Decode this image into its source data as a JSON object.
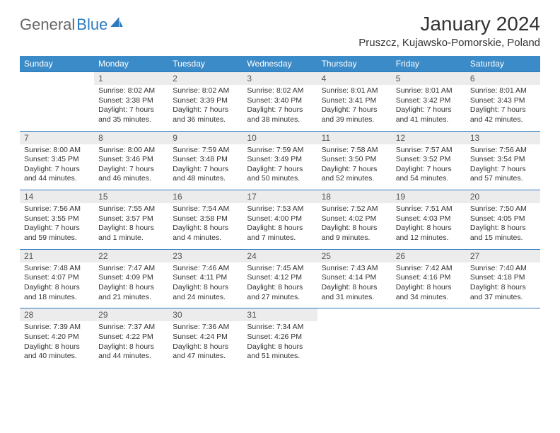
{
  "brand": {
    "part1": "General",
    "part2": "Blue"
  },
  "title": "January 2024",
  "location": "Pruszcz, Kujawsko-Pomorskie, Poland",
  "colors": {
    "header_bg": "#3b8bc8",
    "border": "#2b7bbf",
    "daynum_bg": "#ececec",
    "text": "#333333",
    "logo_gray": "#666666",
    "logo_blue": "#2b7bbf"
  },
  "weekdays": [
    "Sunday",
    "Monday",
    "Tuesday",
    "Wednesday",
    "Thursday",
    "Friday",
    "Saturday"
  ],
  "weeks": [
    [
      null,
      {
        "n": "1",
        "sr": "8:02 AM",
        "ss": "3:38 PM",
        "dl": "7 hours and 35 minutes."
      },
      {
        "n": "2",
        "sr": "8:02 AM",
        "ss": "3:39 PM",
        "dl": "7 hours and 36 minutes."
      },
      {
        "n": "3",
        "sr": "8:02 AM",
        "ss": "3:40 PM",
        "dl": "7 hours and 38 minutes."
      },
      {
        "n": "4",
        "sr": "8:01 AM",
        "ss": "3:41 PM",
        "dl": "7 hours and 39 minutes."
      },
      {
        "n": "5",
        "sr": "8:01 AM",
        "ss": "3:42 PM",
        "dl": "7 hours and 41 minutes."
      },
      {
        "n": "6",
        "sr": "8:01 AM",
        "ss": "3:43 PM",
        "dl": "7 hours and 42 minutes."
      }
    ],
    [
      {
        "n": "7",
        "sr": "8:00 AM",
        "ss": "3:45 PM",
        "dl": "7 hours and 44 minutes."
      },
      {
        "n": "8",
        "sr": "8:00 AM",
        "ss": "3:46 PM",
        "dl": "7 hours and 46 minutes."
      },
      {
        "n": "9",
        "sr": "7:59 AM",
        "ss": "3:48 PM",
        "dl": "7 hours and 48 minutes."
      },
      {
        "n": "10",
        "sr": "7:59 AM",
        "ss": "3:49 PM",
        "dl": "7 hours and 50 minutes."
      },
      {
        "n": "11",
        "sr": "7:58 AM",
        "ss": "3:50 PM",
        "dl": "7 hours and 52 minutes."
      },
      {
        "n": "12",
        "sr": "7:57 AM",
        "ss": "3:52 PM",
        "dl": "7 hours and 54 minutes."
      },
      {
        "n": "13",
        "sr": "7:56 AM",
        "ss": "3:54 PM",
        "dl": "7 hours and 57 minutes."
      }
    ],
    [
      {
        "n": "14",
        "sr": "7:56 AM",
        "ss": "3:55 PM",
        "dl": "7 hours and 59 minutes."
      },
      {
        "n": "15",
        "sr": "7:55 AM",
        "ss": "3:57 PM",
        "dl": "8 hours and 1 minute."
      },
      {
        "n": "16",
        "sr": "7:54 AM",
        "ss": "3:58 PM",
        "dl": "8 hours and 4 minutes."
      },
      {
        "n": "17",
        "sr": "7:53 AM",
        "ss": "4:00 PM",
        "dl": "8 hours and 7 minutes."
      },
      {
        "n": "18",
        "sr": "7:52 AM",
        "ss": "4:02 PM",
        "dl": "8 hours and 9 minutes."
      },
      {
        "n": "19",
        "sr": "7:51 AM",
        "ss": "4:03 PM",
        "dl": "8 hours and 12 minutes."
      },
      {
        "n": "20",
        "sr": "7:50 AM",
        "ss": "4:05 PM",
        "dl": "8 hours and 15 minutes."
      }
    ],
    [
      {
        "n": "21",
        "sr": "7:48 AM",
        "ss": "4:07 PM",
        "dl": "8 hours and 18 minutes."
      },
      {
        "n": "22",
        "sr": "7:47 AM",
        "ss": "4:09 PM",
        "dl": "8 hours and 21 minutes."
      },
      {
        "n": "23",
        "sr": "7:46 AM",
        "ss": "4:11 PM",
        "dl": "8 hours and 24 minutes."
      },
      {
        "n": "24",
        "sr": "7:45 AM",
        "ss": "4:12 PM",
        "dl": "8 hours and 27 minutes."
      },
      {
        "n": "25",
        "sr": "7:43 AM",
        "ss": "4:14 PM",
        "dl": "8 hours and 31 minutes."
      },
      {
        "n": "26",
        "sr": "7:42 AM",
        "ss": "4:16 PM",
        "dl": "8 hours and 34 minutes."
      },
      {
        "n": "27",
        "sr": "7:40 AM",
        "ss": "4:18 PM",
        "dl": "8 hours and 37 minutes."
      }
    ],
    [
      {
        "n": "28",
        "sr": "7:39 AM",
        "ss": "4:20 PM",
        "dl": "8 hours and 40 minutes."
      },
      {
        "n": "29",
        "sr": "7:37 AM",
        "ss": "4:22 PM",
        "dl": "8 hours and 44 minutes."
      },
      {
        "n": "30",
        "sr": "7:36 AM",
        "ss": "4:24 PM",
        "dl": "8 hours and 47 minutes."
      },
      {
        "n": "31",
        "sr": "7:34 AM",
        "ss": "4:26 PM",
        "dl": "8 hours and 51 minutes."
      },
      null,
      null,
      null
    ]
  ],
  "labels": {
    "sunrise": "Sunrise: ",
    "sunset": "Sunset: ",
    "daylight": "Daylight: "
  }
}
